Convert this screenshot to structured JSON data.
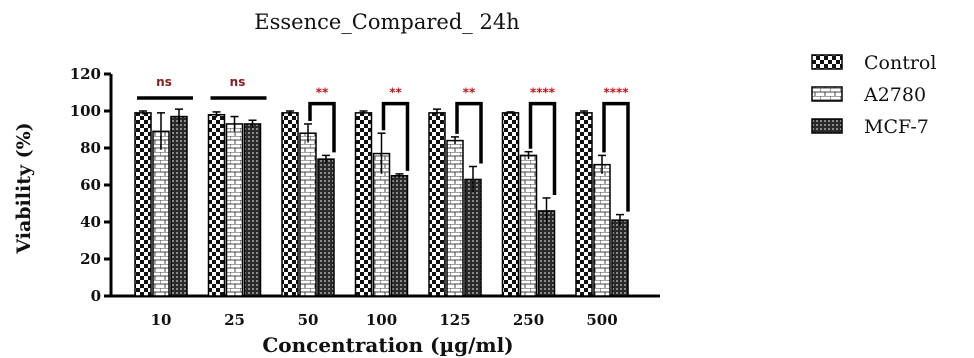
{
  "chart_data": {
    "type": "bar",
    "title": "Essence_Compared_ 24h",
    "xlabel": "Concentration (µg/ml)",
    "ylabel": "Viability (%)",
    "ylim": [
      0,
      120
    ],
    "yticks": [
      "0",
      "20",
      "40",
      "60",
      "80",
      "100",
      "120"
    ],
    "categories": [
      "10",
      "25",
      "50",
      "100",
      "125",
      "250",
      "500"
    ],
    "series": [
      {
        "name": "Control",
        "values": [
          99,
          98,
          99,
          99,
          99,
          99,
          99
        ],
        "errors": [
          1,
          1.5,
          1,
          1,
          2,
          0.5,
          1
        ],
        "pattern": "checker"
      },
      {
        "name": "A2780",
        "values": [
          89,
          93,
          88,
          77,
          84,
          76,
          71
        ],
        "errors": [
          10,
          4,
          5,
          11,
          2,
          2,
          5
        ],
        "pattern": "brick"
      },
      {
        "name": "MCF-7",
        "values": [
          97,
          93,
          74,
          65,
          63,
          46,
          41
        ],
        "errors": [
          4,
          2,
          2,
          1,
          7,
          7,
          3
        ],
        "pattern": "dots"
      }
    ],
    "significance": [
      {
        "label": "ns",
        "color": "#8b1a1a"
      },
      {
        "label": "ns",
        "color": "#8b1a1a"
      },
      {
        "label": "**",
        "color": "#c0141a"
      },
      {
        "label": "**",
        "color": "#c0141a"
      },
      {
        "label": "**",
        "color": "#c0141a"
      },
      {
        "label": "****",
        "color": "#c0141a"
      },
      {
        "label": "****",
        "color": "#c0141a"
      }
    ],
    "legend_position": "right",
    "grid": false
  }
}
